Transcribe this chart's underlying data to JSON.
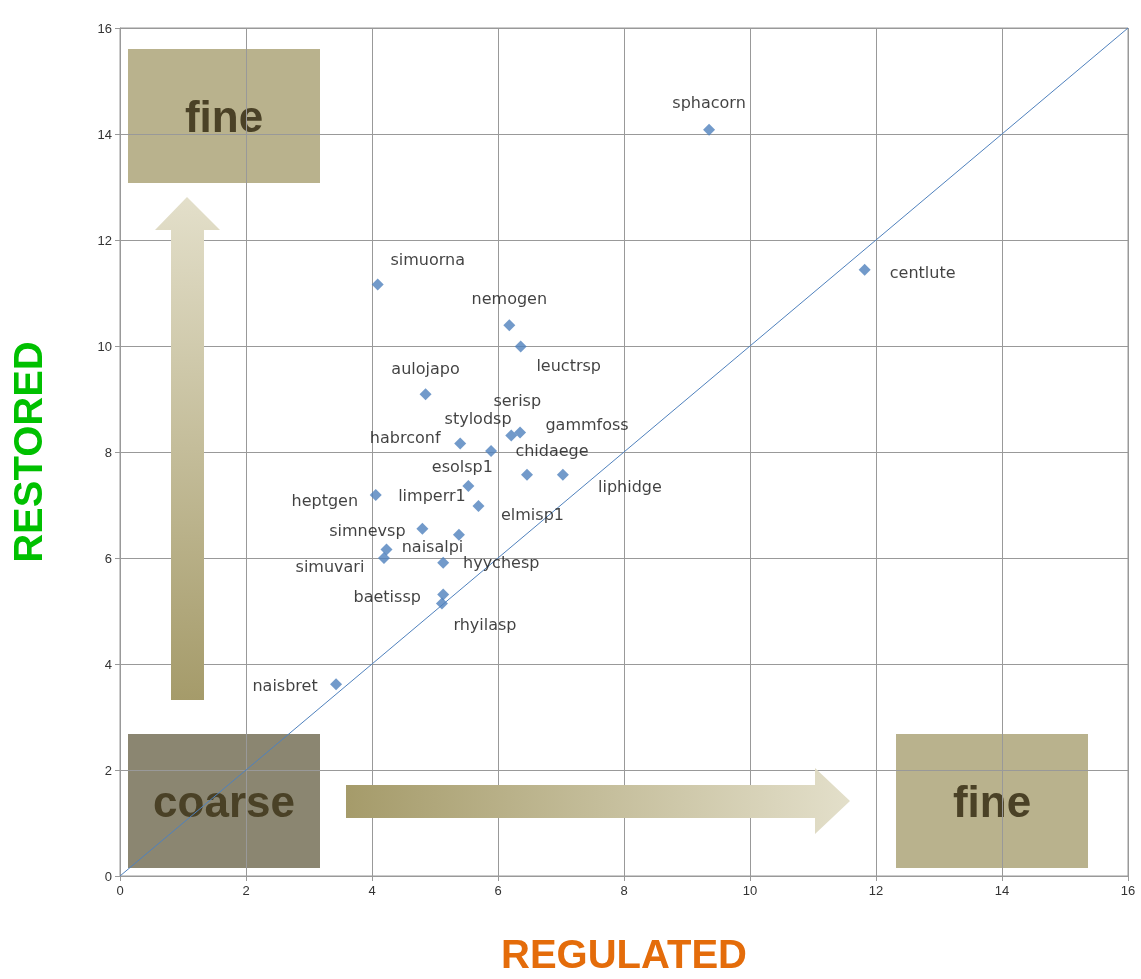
{
  "chart_data": {
    "type": "scatter",
    "xlabel": "REGULATED",
    "ylabel": "RESTORED",
    "xlim": [
      0,
      16
    ],
    "xticks": [
      0,
      2,
      4,
      6,
      8,
      10,
      12,
      14,
      16
    ],
    "ylim": [
      0,
      16
    ],
    "yticks": [
      0,
      2,
      4,
      6,
      8,
      10,
      12,
      14,
      16
    ],
    "grid": true,
    "annotations": [
      "fine",
      "coarse",
      "fine"
    ],
    "series": [
      {
        "type": "scatter",
        "color": "#4f81bd",
        "marker": "diamond",
        "x": [
          9.35,
          11.82,
          3.43,
          4.09,
          6.18,
          6.36,
          4.85,
          6.21,
          6.35,
          5.4,
          5.89,
          6.46,
          7.03,
          5.53,
          5.69,
          5.38,
          4.06,
          4.23,
          4.8,
          4.19,
          5.13,
          5.13,
          5.11
        ],
        "values": [
          14.08,
          11.44,
          3.62,
          11.16,
          10.39,
          9.99,
          9.09,
          8.31,
          8.37,
          8.16,
          8.02,
          7.57,
          7.57,
          7.36,
          6.98,
          6.44,
          7.19,
          6.16,
          6.55,
          6.0,
          5.91,
          5.31,
          5.14
        ],
        "value_labels": [
          "sphacorn",
          "centlute",
          "naisbret",
          "simuorna",
          "nemogen",
          "leuctrsp",
          "aulojapo",
          "serisp",
          "gammfoss",
          "habrconf",
          "stylodsp",
          "chidaege",
          "liphidge",
          "esolsp1",
          "elmisp1",
          "limperr1",
          "heptgen",
          "naisalpi",
          "simnevsp",
          "simuvari",
          "hyychesp",
          "baetissp",
          "rhyilasp"
        ]
      },
      {
        "type": "line",
        "color": "#4f81bd",
        "marker": "none",
        "x": [
          0,
          16
        ],
        "values": [
          0,
          16
        ]
      }
    ]
  }
}
